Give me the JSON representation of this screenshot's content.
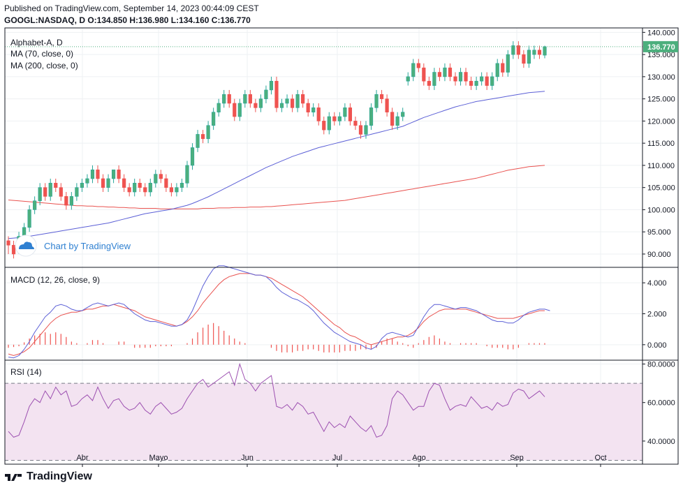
{
  "header": {
    "published": "Published on TradingView.com, September 14, 2023 00:44:09 CEST",
    "ohlc": "GOOGL:NASDAQ, D  O:134.850 H:136.980 L:134.160 C:136.770"
  },
  "colors": {
    "up": "#26a69a",
    "up_fill": "#4caf7d",
    "down": "#ef5350",
    "ma70": "#5b5fd6",
    "ma200": "#e9524f",
    "rsi": "#9c4fb0",
    "rsi_band": "#f3e3f1",
    "grid": "#eef0f3",
    "axis": "#131722",
    "price_tag": "#4caf7d"
  },
  "watermark": "Chart by TradingView",
  "footer": {
    "brand": "TradingView"
  },
  "chart_data": [
    {
      "type": "candlestick",
      "title": "Alphabet-A, D",
      "legend": [
        "MA (70, close, 0)",
        "MA (200, close, 0)"
      ],
      "ylim": [
        87,
        141
      ],
      "yticks": [
        "140.000",
        "135.000",
        "130.000",
        "125.000",
        "120.000",
        "115.000",
        "110.000",
        "105.000",
        "100.000",
        "95.000",
        "90.000"
      ],
      "ytick_values": [
        140,
        135,
        130,
        125,
        120,
        115,
        110,
        105,
        100,
        95,
        90
      ],
      "last_price": "136.770",
      "last_value": 136.77,
      "x_labels": [
        "Abr",
        "Mayo",
        "Jun",
        "Jul",
        "Ago",
        "Sep",
        "Oct"
      ],
      "candles": [
        [
          93,
          92,
          94,
          90
        ],
        [
          92,
          90,
          93,
          89
        ],
        [
          91,
          94,
          95,
          90
        ],
        [
          94,
          96,
          97,
          93
        ],
        [
          96,
          100,
          101,
          95
        ],
        [
          100,
          102,
          103,
          99
        ],
        [
          102,
          105,
          106,
          101
        ],
        [
          105,
          103,
          106,
          102
        ],
        [
          103,
          106,
          107,
          102
        ],
        [
          106,
          105,
          107,
          104
        ],
        [
          105,
          103,
          106,
          102
        ],
        [
          103,
          101,
          104,
          100
        ],
        [
          101,
          103,
          104,
          100
        ],
        [
          103,
          105,
          106,
          102
        ],
        [
          105,
          106,
          107,
          104
        ],
        [
          106,
          107,
          108,
          105
        ],
        [
          107,
          109,
          110,
          106
        ],
        [
          109,
          107,
          110,
          106
        ],
        [
          107,
          105,
          108,
          104
        ],
        [
          105,
          107,
          108,
          104
        ],
        [
          107,
          109,
          109,
          106
        ],
        [
          109,
          107,
          110,
          106
        ],
        [
          107,
          105,
          108,
          104
        ],
        [
          105,
          104,
          106,
          103
        ],
        [
          104,
          106,
          107,
          103
        ],
        [
          106,
          105,
          107,
          104
        ],
        [
          105,
          104,
          106,
          103
        ],
        [
          104,
          106,
          107,
          103
        ],
        [
          106,
          108,
          109,
          105
        ],
        [
          108,
          107,
          109,
          106
        ],
        [
          107,
          105,
          108,
          104
        ],
        [
          105,
          104,
          106,
          103
        ],
        [
          104,
          105,
          106,
          103
        ],
        [
          105,
          106,
          107,
          104
        ],
        [
          106,
          110,
          111,
          105
        ],
        [
          110,
          114,
          115,
          109
        ],
        [
          114,
          117,
          118,
          113
        ],
        [
          117,
          116,
          118,
          115
        ],
        [
          116,
          119,
          120,
          115
        ],
        [
          119,
          122,
          123,
          118
        ],
        [
          122,
          124,
          125,
          121
        ],
        [
          124,
          126,
          127,
          123
        ],
        [
          126,
          124,
          127,
          123
        ],
        [
          124,
          121,
          125,
          120
        ],
        [
          121,
          124,
          125,
          120
        ],
        [
          124,
          126,
          127,
          123
        ],
        [
          126,
          124,
          127,
          123
        ],
        [
          124,
          123,
          125,
          122
        ],
        [
          123,
          125,
          126,
          122
        ],
        [
          125,
          127,
          128,
          124
        ],
        [
          127,
          129,
          130,
          126
        ],
        [
          129,
          123,
          130,
          122
        ],
        [
          123,
          124,
          125,
          122
        ],
        [
          124,
          125,
          126,
          123
        ],
        [
          125,
          123,
          126,
          122
        ],
        [
          123,
          126,
          127,
          122
        ],
        [
          126,
          124,
          127,
          123
        ],
        [
          124,
          122,
          125,
          121
        ],
        [
          122,
          123,
          124,
          121
        ],
        [
          123,
          120,
          124,
          119
        ],
        [
          120,
          118,
          121,
          117
        ],
        [
          118,
          121,
          122,
          117
        ],
        [
          121,
          120,
          122,
          119
        ],
        [
          120,
          121,
          122,
          119
        ],
        [
          121,
          123,
          124,
          120
        ],
        [
          123,
          120,
          124,
          119
        ],
        [
          120,
          119,
          121,
          118
        ],
        [
          119,
          117,
          120,
          116
        ],
        [
          117,
          119,
          120,
          116
        ],
        [
          119,
          123,
          124,
          118
        ],
        [
          123,
          126,
          127,
          122
        ],
        [
          126,
          125,
          127,
          124
        ],
        [
          125,
          122,
          126,
          121
        ],
        [
          122,
          119,
          123,
          118
        ],
        [
          119,
          121,
          122,
          118
        ],
        [
          121,
          122,
          123,
          120
        ],
        [
          129,
          130,
          131,
          128
        ],
        [
          130,
          133,
          134,
          129
        ],
        [
          133,
          132,
          134,
          131
        ],
        [
          132,
          129,
          133,
          128
        ],
        [
          129,
          128,
          130,
          127
        ],
        [
          128,
          131,
          132,
          127
        ],
        [
          131,
          130,
          132,
          129
        ],
        [
          130,
          132,
          133,
          129
        ],
        [
          132,
          130,
          133,
          129
        ],
        [
          130,
          129,
          131,
          128
        ],
        [
          129,
          131,
          132,
          128
        ],
        [
          131,
          129,
          132,
          128
        ],
        [
          129,
          128,
          130,
          127
        ],
        [
          128,
          129,
          130,
          127
        ],
        [
          129,
          130,
          131,
          128
        ],
        [
          130,
          128,
          131,
          127
        ],
        [
          128,
          130,
          131,
          127
        ],
        [
          130,
          133,
          134,
          129
        ],
        [
          133,
          131,
          134,
          130
        ],
        [
          131,
          135,
          136,
          130
        ],
        [
          135,
          137,
          138,
          134
        ],
        [
          137,
          135,
          138,
          134
        ],
        [
          135,
          133,
          136,
          132
        ],
        [
          133,
          136,
          137,
          132
        ],
        [
          135,
          136,
          137,
          134
        ],
        [
          136,
          135,
          137,
          134
        ],
        [
          134.85,
          136.77,
          136.98,
          134.16
        ]
      ],
      "ma70": [
        93.5,
        93.6,
        93.7,
        93.8,
        94.0,
        94.2,
        94.4,
        94.6,
        94.8,
        95.0,
        95.2,
        95.4,
        95.6,
        95.8,
        96.0,
        96.2,
        96.4,
        96.6,
        96.8,
        97.0,
        97.3,
        97.6,
        97.9,
        98.2,
        98.5,
        98.8,
        99.1,
        99.3,
        99.5,
        99.7,
        99.9,
        100.1,
        100.4,
        100.7,
        101.0,
        101.4,
        101.9,
        102.4,
        102.9,
        103.5,
        104.1,
        104.7,
        105.3,
        105.9,
        106.5,
        107.1,
        107.7,
        108.3,
        108.9,
        109.5,
        110.0,
        110.5,
        111.0,
        111.5,
        112.0,
        112.4,
        112.8,
        113.2,
        113.6,
        114.0,
        114.3,
        114.6,
        114.9,
        115.2,
        115.5,
        115.8,
        116.1,
        116.4,
        116.7,
        117.0,
        117.3,
        117.6,
        117.9,
        118.2,
        118.5,
        118.8,
        119.3,
        119.8,
        120.3,
        120.8,
        121.2,
        121.6,
        122.0,
        122.4,
        122.8,
        123.2,
        123.5,
        123.8,
        124.1,
        124.4,
        124.6,
        124.8,
        125.0,
        125.2,
        125.4,
        125.6,
        125.8,
        126.0,
        126.2,
        126.4,
        126.5,
        126.6,
        126.7
      ],
      "ma200": [
        102.2,
        102.1,
        102.0,
        101.9,
        101.8,
        101.7,
        101.6,
        101.5,
        101.4,
        101.3,
        101.2,
        101.1,
        101.0,
        100.9,
        100.9,
        100.8,
        100.8,
        100.7,
        100.7,
        100.6,
        100.6,
        100.5,
        100.5,
        100.4,
        100.4,
        100.3,
        100.3,
        100.3,
        100.3,
        100.2,
        100.2,
        100.2,
        100.2,
        100.2,
        100.2,
        100.2,
        100.2,
        100.3,
        100.3,
        100.3,
        100.4,
        100.4,
        100.4,
        100.5,
        100.5,
        100.5,
        100.6,
        100.6,
        100.6,
        100.7,
        100.7,
        100.8,
        100.9,
        101.0,
        101.1,
        101.2,
        101.3,
        101.4,
        101.5,
        101.6,
        101.7,
        101.8,
        101.9,
        102.0,
        102.1,
        102.3,
        102.5,
        102.7,
        102.9,
        103.1,
        103.3,
        103.5,
        103.7,
        103.9,
        104.1,
        104.3,
        104.5,
        104.7,
        104.9,
        105.1,
        105.3,
        105.5,
        105.7,
        105.9,
        106.1,
        106.3,
        106.5,
        106.7,
        106.9,
        107.1,
        107.4,
        107.7,
        108.0,
        108.3,
        108.6,
        108.9,
        109.1,
        109.3,
        109.5,
        109.7,
        109.8,
        109.9,
        110.0
      ]
    },
    {
      "type": "line",
      "title": "MACD (12, 26, close, 9)",
      "ylim": [
        -1.0,
        5.0
      ],
      "yticks": [
        "4.000",
        "2.000",
        "0.000"
      ],
      "ytick_values": [
        4,
        2,
        0
      ],
      "macd": [
        -0.8,
        -0.85,
        -0.7,
        -0.3,
        0.2,
        0.8,
        1.3,
        1.8,
        2.1,
        2.5,
        2.6,
        2.5,
        2.3,
        2.2,
        2.2,
        2.4,
        2.6,
        2.7,
        2.6,
        2.5,
        2.6,
        2.7,
        2.6,
        2.3,
        2.0,
        1.8,
        1.6,
        1.5,
        1.5,
        1.4,
        1.3,
        1.2,
        1.2,
        1.3,
        1.6,
        2.2,
        3.0,
        3.8,
        4.4,
        4.9,
        5.1,
        5.1,
        5.0,
        4.9,
        4.8,
        4.7,
        4.6,
        4.5,
        4.5,
        4.4,
        4.1,
        3.7,
        3.4,
        3.2,
        3.0,
        2.9,
        2.7,
        2.5,
        2.2,
        1.8,
        1.4,
        1.1,
        0.8,
        0.6,
        0.4,
        0.2,
        0.1,
        0.0,
        -0.2,
        -0.3,
        -0.1,
        0.4,
        0.7,
        0.8,
        0.7,
        0.6,
        0.5,
        0.6,
        1.2,
        1.8,
        2.3,
        2.6,
        2.6,
        2.5,
        2.4,
        2.3,
        2.4,
        2.4,
        2.3,
        2.2,
        2.0,
        1.8,
        1.6,
        1.5,
        1.5,
        1.4,
        1.4,
        1.6,
        1.9,
        2.1,
        2.2,
        2.3,
        2.3,
        2.2
      ],
      "signal": [
        -0.6,
        -0.7,
        -0.6,
        -0.45,
        -0.2,
        0.2,
        0.6,
        1.0,
        1.4,
        1.7,
        1.9,
        2.0,
        2.1,
        2.1,
        2.2,
        2.3,
        2.3,
        2.4,
        2.5,
        2.5,
        2.6,
        2.5,
        2.4,
        2.3,
        2.2,
        2.0,
        1.8,
        1.7,
        1.6,
        1.5,
        1.4,
        1.3,
        1.2,
        1.3,
        1.5,
        1.8,
        2.2,
        2.7,
        3.1,
        3.5,
        3.9,
        4.2,
        4.4,
        4.5,
        4.6,
        4.6,
        4.6,
        4.5,
        4.5,
        4.4,
        4.3,
        4.1,
        3.9,
        3.7,
        3.5,
        3.3,
        3.1,
        2.8,
        2.5,
        2.2,
        1.9,
        1.6,
        1.3,
        1.1,
        0.8,
        0.6,
        0.5,
        0.3,
        0.1,
        0.0,
        0.1,
        0.2,
        0.3,
        0.4,
        0.5,
        0.5,
        0.6,
        0.8,
        1.1,
        1.5,
        1.8,
        2.0,
        2.2,
        2.3,
        2.3,
        2.3,
        2.3,
        2.3,
        2.2,
        2.1,
        2.0,
        1.9,
        1.8,
        1.7,
        1.7,
        1.7,
        1.7,
        1.8,
        1.9,
        2.0,
        2.1,
        2.2,
        2.2
      ],
      "histogram": [
        -0.2,
        -0.15,
        -0.1,
        0.15,
        0.4,
        0.6,
        0.7,
        0.8,
        0.7,
        0.8,
        0.7,
        0.5,
        0.2,
        0.1,
        0.0,
        0.1,
        0.3,
        0.3,
        0.1,
        0.0,
        0.0,
        0.2,
        0.2,
        0.0,
        -0.2,
        -0.2,
        -0.2,
        -0.2,
        -0.1,
        -0.1,
        -0.1,
        -0.1,
        0.0,
        0.0,
        0.1,
        0.4,
        0.8,
        1.1,
        1.3,
        1.4,
        1.2,
        0.9,
        0.6,
        0.4,
        0.2,
        0.1,
        0.0,
        0.0,
        0.0,
        0.0,
        -0.2,
        -0.4,
        -0.5,
        -0.5,
        -0.5,
        -0.4,
        -0.4,
        -0.3,
        -0.3,
        -0.4,
        -0.5,
        -0.5,
        -0.5,
        -0.5,
        -0.4,
        -0.4,
        -0.4,
        -0.3,
        -0.3,
        -0.3,
        -0.2,
        0.2,
        0.4,
        0.4,
        0.2,
        0.1,
        -0.1,
        -0.2,
        0.1,
        0.3,
        0.5,
        0.6,
        0.4,
        0.2,
        0.1,
        0.0,
        0.1,
        0.1,
        0.1,
        0.1,
        0.0,
        -0.1,
        -0.2,
        -0.2,
        -0.2,
        -0.3,
        -0.3,
        -0.2,
        0.0,
        0.1,
        0.1,
        0.1,
        0.1,
        0.0
      ]
    },
    {
      "type": "line",
      "title": "RSI (14)",
      "ylim": [
        28,
        82
      ],
      "yticks": [
        "80.0000",
        "60.0000",
        "40.0000"
      ],
      "ytick_values": [
        80,
        60,
        40
      ],
      "band": [
        30,
        70
      ],
      "rsi": [
        45,
        42,
        43,
        50,
        58,
        62,
        60,
        66,
        62,
        68,
        64,
        66,
        58,
        59,
        62,
        64,
        61,
        68,
        62,
        57,
        61,
        62,
        58,
        56,
        57,
        60,
        56,
        54,
        58,
        60,
        57,
        54,
        55,
        57,
        62,
        66,
        70,
        72,
        68,
        70,
        72,
        74,
        76,
        69,
        80,
        72,
        70,
        66,
        70,
        72,
        74,
        58,
        57,
        59,
        56,
        60,
        58,
        54,
        55,
        50,
        45,
        50,
        47,
        49,
        47,
        53,
        50,
        47,
        45,
        48,
        42,
        43,
        48,
        62,
        66,
        64,
        60,
        56,
        58,
        58,
        66,
        70,
        69,
        62,
        56,
        58,
        59,
        58,
        63,
        60,
        57,
        58,
        56,
        60,
        58,
        59,
        65,
        67,
        66,
        62,
        64,
        66,
        63
      ],
      "dashed_levels": [
        70,
        30
      ]
    }
  ]
}
